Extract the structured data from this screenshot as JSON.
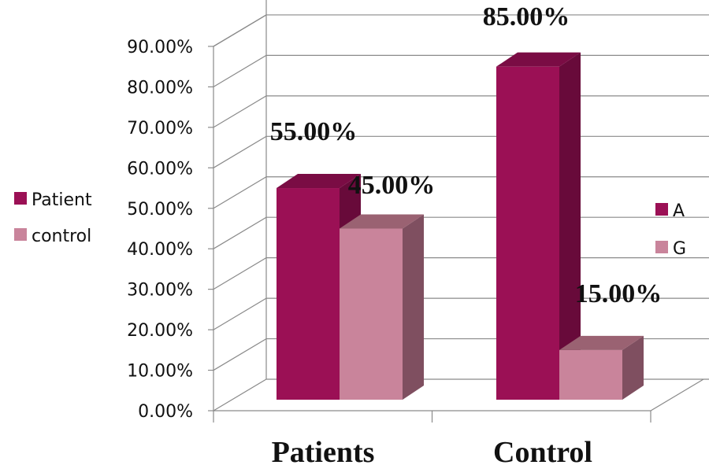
{
  "chart_data": {
    "type": "bar",
    "style": "3d-clustered-column",
    "categories": [
      "Patients",
      "Control"
    ],
    "series": [
      {
        "name": "A",
        "values": [
          55,
          85
        ],
        "color": "#9b1055",
        "side_color": "#680a3a",
        "top_color": "#7a0c44"
      },
      {
        "name": "G",
        "values": [
          45,
          15
        ],
        "color": "#c9849b",
        "side_color": "#7f4f60",
        "top_color": "#9a6272"
      }
    ],
    "data_labels": [
      [
        "55.00%",
        "85.00%"
      ],
      [
        "45.00%",
        "15.00%"
      ]
    ],
    "y_ticks": [
      "0.00%",
      "10.00%",
      "20.00%",
      "30.00%",
      "40.00%",
      "50.00%",
      "60.00%",
      "70.00%",
      "80.00%",
      "90.00%"
    ],
    "ylim": [
      0,
      90
    ],
    "grid": true,
    "legends": [
      {
        "placement": "left",
        "entries": [
          {
            "label": "Patient",
            "color": "#9b1055"
          },
          {
            "label": "control",
            "color": "#c9849b"
          }
        ]
      },
      {
        "placement": "right",
        "entries": [
          {
            "label": "A",
            "color": "#9b1055"
          },
          {
            "label": "G",
            "color": "#c9849b"
          }
        ]
      }
    ],
    "title": "",
    "xlabel": "",
    "ylabel": ""
  }
}
